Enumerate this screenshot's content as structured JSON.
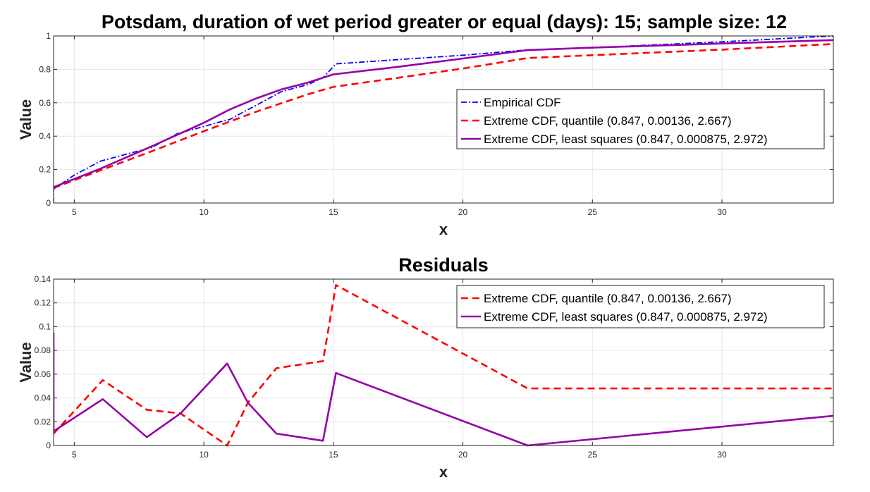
{
  "figure_title": "Potsdam, duration of wet period greater or equal (days): 15; sample size: 12",
  "chart_data": [
    {
      "type": "line",
      "title": "Potsdam, duration of wet period greater or equal (days): 15; sample size: 12",
      "xlabel": "x",
      "ylabel": "Value",
      "xlim": [
        4.2,
        34.3
      ],
      "ylim": [
        0,
        1
      ],
      "xticks": [
        5,
        10,
        15,
        20,
        25,
        30
      ],
      "yticks": [
        0,
        0.2,
        0.4,
        0.6,
        0.8,
        1
      ],
      "ytick_labels": [
        "0",
        "0.2",
        "0.4",
        "0.6",
        "0.8",
        "1"
      ],
      "grid": true,
      "legend_position": "right",
      "series": [
        {
          "name": "Empirical CDF",
          "color": "#0000ff",
          "style": "dashdot",
          "x": [
            4.2,
            4.2,
            5.0,
            6.0,
            7.0,
            8.0,
            9.0,
            10.0,
            10.5,
            11.0,
            11.5,
            12.0,
            13.0,
            14.0,
            14.6,
            15.1,
            20.0,
            22.5,
            25.0,
            30.0,
            34.3
          ],
          "y": [
            0,
            0.083,
            0.167,
            0.25,
            0.292,
            0.333,
            0.417,
            0.458,
            0.48,
            0.5,
            0.542,
            0.583,
            0.667,
            0.708,
            0.75,
            0.833,
            0.885,
            0.917,
            0.93,
            0.965,
            1.0
          ]
        },
        {
          "name": "Extreme CDF, quantile (0.847, 0.00136, 2.667)",
          "color": "#ff0000",
          "style": "dashed",
          "x": [
            4.2,
            6.0,
            8.0,
            10.0,
            12.0,
            14.0,
            15.0,
            17.5,
            20.0,
            22.5,
            25.0,
            30.0,
            34.3
          ],
          "y": [
            0.09,
            0.195,
            0.31,
            0.43,
            0.545,
            0.65,
            0.695,
            0.75,
            0.805,
            0.868,
            0.885,
            0.918,
            0.952
          ]
        },
        {
          "name": "Extreme CDF, least squares (0.847, 0.000875, 2.972)",
          "color": "#9400a8",
          "style": "solid",
          "x": [
            4.2,
            6.0,
            8.0,
            10.0,
            11.0,
            12.0,
            13.0,
            14.0,
            15.0,
            17.5,
            20.0,
            22.5,
            25.0,
            30.0,
            34.3
          ],
          "y": [
            0.095,
            0.205,
            0.34,
            0.48,
            0.56,
            0.625,
            0.68,
            0.72,
            0.77,
            0.815,
            0.865,
            0.915,
            0.93,
            0.955,
            0.975
          ]
        }
      ]
    },
    {
      "type": "line",
      "title": "Residuals",
      "xlabel": "x",
      "ylabel": "Value",
      "xlim": [
        4.2,
        34.3
      ],
      "ylim": [
        0,
        0.14
      ],
      "xticks": [
        5,
        10,
        15,
        20,
        25,
        30
      ],
      "yticks": [
        0,
        0.02,
        0.04,
        0.06,
        0.08,
        0.1,
        0.12,
        0.14
      ],
      "ytick_labels": [
        "0",
        "0.02",
        "0.04",
        "0.06",
        "0.08",
        "0.1",
        "0.12",
        "0.14"
      ],
      "grid": true,
      "legend_position": "top-right",
      "series": [
        {
          "name": "Extreme CDF, quantile (0.847, 0.00136, 2.667)",
          "color": "#ff0000",
          "style": "dashed",
          "x": [
            4.2,
            6.1,
            7.8,
            9.1,
            10.9,
            11.7,
            12.8,
            14.6,
            15.1,
            22.5,
            34.3
          ],
          "y": [
            0.01,
            0.055,
            0.03,
            0.027,
            0.0,
            0.036,
            0.065,
            0.071,
            0.135,
            0.048,
            0.048
          ]
        },
        {
          "name": "Extreme CDF, least squares (0.847, 0.000875, 2.972)",
          "color": "#9400a8",
          "style": "solid",
          "x": [
            4.2,
            4.2,
            6.1,
            7.8,
            9.1,
            10.9,
            11.7,
            12.8,
            14.6,
            15.1,
            22.5,
            34.3
          ],
          "y": [
            0.095,
            0.012,
            0.039,
            0.007,
            0.027,
            0.069,
            0.036,
            0.01,
            0.004,
            0.061,
            0.0,
            0.025
          ]
        }
      ]
    }
  ]
}
